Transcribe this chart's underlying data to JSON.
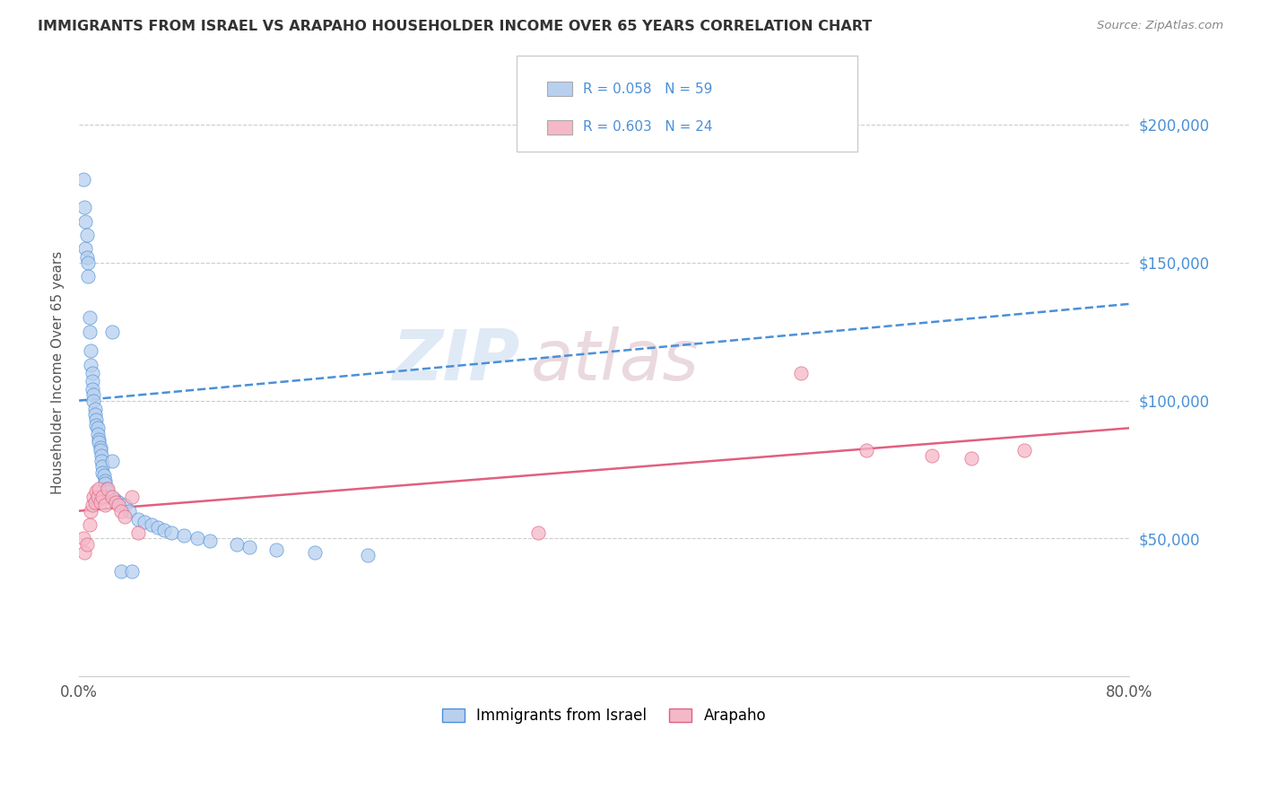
{
  "title": "IMMIGRANTS FROM ISRAEL VS ARAPAHO HOUSEHOLDER INCOME OVER 65 YEARS CORRELATION CHART",
  "source": "Source: ZipAtlas.com",
  "ylabel": "Householder Income Over 65 years",
  "bottom_legend": [
    "Immigrants from Israel",
    "Arapaho"
  ],
  "watermark_zip": "ZIP",
  "watermark_atlas": "atlas",
  "ytick_labels": [
    "$50,000",
    "$100,000",
    "$150,000",
    "$200,000"
  ],
  "ytick_values": [
    50000,
    100000,
    150000,
    200000
  ],
  "xlim": [
    0.0,
    0.8
  ],
  "ylim": [
    0,
    220000
  ],
  "israel_color": "#b8d0ee",
  "arapaho_color": "#f5b8c8",
  "israel_line_color": "#4a90d9",
  "arapaho_line_color": "#e06080",
  "israel_scatter_x": [
    0.003,
    0.004,
    0.005,
    0.005,
    0.006,
    0.006,
    0.007,
    0.007,
    0.008,
    0.008,
    0.009,
    0.009,
    0.01,
    0.01,
    0.01,
    0.011,
    0.011,
    0.012,
    0.012,
    0.013,
    0.013,
    0.014,
    0.014,
    0.015,
    0.015,
    0.016,
    0.016,
    0.017,
    0.017,
    0.018,
    0.018,
    0.019,
    0.02,
    0.02,
    0.021,
    0.022,
    0.023,
    0.025,
    0.025,
    0.027,
    0.03,
    0.032,
    0.035,
    0.038,
    0.04,
    0.045,
    0.05,
    0.055,
    0.06,
    0.065,
    0.07,
    0.08,
    0.09,
    0.1,
    0.12,
    0.13,
    0.15,
    0.18,
    0.22
  ],
  "israel_scatter_y": [
    180000,
    170000,
    165000,
    155000,
    160000,
    152000,
    150000,
    145000,
    130000,
    125000,
    118000,
    113000,
    110000,
    107000,
    104000,
    102000,
    100000,
    97000,
    95000,
    93000,
    91000,
    90000,
    88000,
    86000,
    85000,
    83000,
    82000,
    80000,
    78000,
    76000,
    74000,
    73000,
    71000,
    70000,
    68000,
    67000,
    65000,
    125000,
    78000,
    64000,
    63000,
    38000,
    62000,
    60000,
    38000,
    57000,
    56000,
    55000,
    54000,
    53000,
    52000,
    51000,
    50000,
    49000,
    48000,
    47000,
    46000,
    45000,
    44000
  ],
  "arapaho_scatter_x": [
    0.003,
    0.004,
    0.006,
    0.008,
    0.009,
    0.01,
    0.011,
    0.012,
    0.013,
    0.014,
    0.015,
    0.016,
    0.018,
    0.02,
    0.022,
    0.025,
    0.028,
    0.03,
    0.032,
    0.035,
    0.04,
    0.045,
    0.35,
    0.55,
    0.6,
    0.65,
    0.68,
    0.72
  ],
  "arapaho_scatter_y": [
    50000,
    45000,
    48000,
    55000,
    60000,
    62000,
    65000,
    63000,
    67000,
    65000,
    68000,
    63000,
    65000,
    62000,
    68000,
    65000,
    63000,
    62000,
    60000,
    58000,
    65000,
    52000,
    52000,
    110000,
    82000,
    80000,
    79000,
    82000
  ],
  "israel_trend_x": [
    0.0,
    0.8
  ],
  "israel_trend_y": [
    100000,
    135000
  ],
  "arapaho_trend_x": [
    0.0,
    0.8
  ],
  "arapaho_trend_y": [
    60000,
    90000
  ]
}
